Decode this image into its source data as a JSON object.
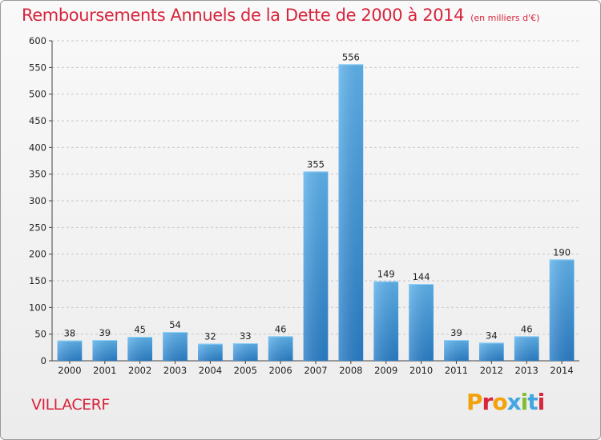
{
  "chart_data": {
    "type": "bar",
    "title": "Remboursements Annuels de la Dette de 2000 à 2014",
    "subtitle": "(en milliers d'€)",
    "xlabel": "",
    "ylabel": "",
    "categories": [
      "2000",
      "2001",
      "2002",
      "2003",
      "2004",
      "2005",
      "2006",
      "2007",
      "2008",
      "2009",
      "2010",
      "2011",
      "2012",
      "2013",
      "2014"
    ],
    "values": [
      38,
      39,
      45,
      54,
      32,
      33,
      46,
      355,
      556,
      149,
      144,
      39,
      34,
      46,
      190
    ],
    "ylim": [
      0,
      600
    ],
    "yticks": [
      0,
      50,
      100,
      150,
      200,
      250,
      300,
      350,
      400,
      450,
      500,
      550,
      600
    ],
    "grid": "horizontal-dashed",
    "bar_color": "#3d93d9"
  },
  "footer": {
    "town": "VILLACERF",
    "logo_text": "Proxiti",
    "logo_colors": [
      "#f2a20d",
      "#d8243c",
      "#f2a20d",
      "#43a6e0",
      "#7fbf2f",
      "#43a6e0",
      "#d8243c"
    ]
  },
  "colors": {
    "title": "#d8243c"
  }
}
